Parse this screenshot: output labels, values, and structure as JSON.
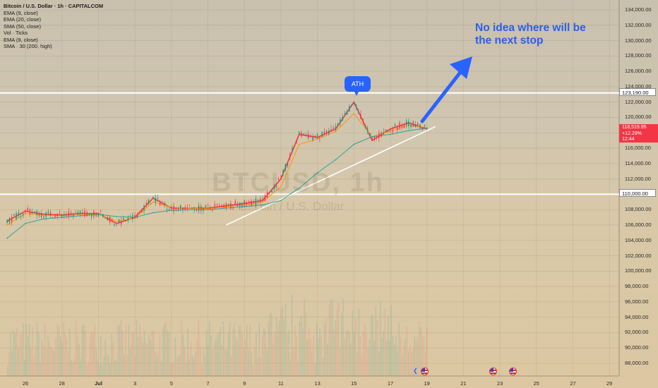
{
  "legend": {
    "title": "Bitcoin / U.S. Dollar · 1h · CAPITALCOM",
    "items": [
      "EMA (9, close)",
      "EMA (20, close)",
      "SMA (50, close)",
      "Vol · Ticks",
      "EMA (9, close)",
      "SMA · 30 (200, high)"
    ]
  },
  "watermark": {
    "symbol": "BTCUSD, 1h",
    "name": "Bitcoin / U.S. Dollar"
  },
  "annotation": {
    "text_line1": "No idea where will be",
    "text_line2": "the next stop",
    "ath_label": "ATH"
  },
  "current_price": {
    "price": "118,519.95",
    "change": "+12.29%",
    "countdown": "12:44"
  },
  "level_labels": {
    "upper": "123,190.00",
    "lower": "110,000.00"
  },
  "colors": {
    "ema9": "#f23645",
    "ema20": "#ff9800",
    "sma50": "#26a69a",
    "arrow": "#2962ff",
    "up": "#089981",
    "down": "#f23645"
  },
  "icons": [
    "us-flag-icon",
    "us-flag-icon",
    "us-flag-icon",
    "event-arrow-icon"
  ],
  "chart_data": {
    "type": "line",
    "title": "Bitcoin / U.S. Dollar · 1h · CAPITALCOM",
    "x_type": "date",
    "x_tick_labels": [
      "26",
      "28",
      "Jul",
      "3",
      "5",
      "7",
      "9",
      "11",
      "13",
      "15",
      "17",
      "19",
      "21",
      "23",
      "25",
      "27",
      "29"
    ],
    "y_ticks": [
      "134,000.00",
      "132,000.00",
      "130,000.00",
      "128,000.00",
      "126,000.00",
      "124,000.00",
      "122,000.00",
      "120,000.00",
      "118,000.00",
      "116,000.00",
      "114,000.00",
      "112,000.00",
      "110,000.00",
      "108,000.00",
      "106,000.00",
      "104,000.00",
      "102,000.00",
      "100,000.00",
      "98,000.00",
      "96,000.00",
      "94,000.00",
      "92,000.00",
      "90,000.00",
      "88,000.00"
    ],
    "ylim": [
      87000,
      135000
    ],
    "price_ylim": [
      87000,
      135000
    ],
    "x": [
      "2025-06-25",
      "2025-06-26",
      "2025-06-27",
      "2025-06-28",
      "2025-06-29",
      "2025-06-30",
      "2025-07-01",
      "2025-07-02",
      "2025-07-03",
      "2025-07-04",
      "2025-07-05",
      "2025-07-06",
      "2025-07-07",
      "2025-07-08",
      "2025-07-09",
      "2025-07-10",
      "2025-07-11",
      "2025-07-12",
      "2025-07-13",
      "2025-07-14",
      "2025-07-15",
      "2025-07-16",
      "2025-07-17",
      "2025-07-18"
    ],
    "series": [
      {
        "name": "EMA (9, close)",
        "values": [
          106500,
          107800,
          107400,
          107300,
          107500,
          107500,
          106200,
          107000,
          109500,
          108200,
          108200,
          108200,
          108500,
          108800,
          109200,
          112000,
          117800,
          117400,
          118500,
          122000,
          117000,
          118500,
          119300,
          118500
        ]
      },
      {
        "name": "EMA (20, close)",
        "values": [
          106000,
          107500,
          107300,
          107200,
          107400,
          107400,
          106500,
          106900,
          109000,
          108300,
          108200,
          108100,
          108400,
          108600,
          109000,
          111000,
          116500,
          117200,
          118200,
          120500,
          117500,
          118200,
          119000,
          118700
        ]
      },
      {
        "name": "SMA (50, close)",
        "values": [
          104300,
          106200,
          106800,
          107000,
          107200,
          107400,
          107100,
          107000,
          107600,
          107900,
          108000,
          108000,
          108200,
          108400,
          108600,
          109200,
          110800,
          112800,
          114500,
          116500,
          117500,
          117800,
          118300,
          118600
        ]
      }
    ],
    "horizontal_levels": [
      123190,
      110000
    ],
    "trendline": {
      "x": [
        "2025-07-07",
        "2025-07-18"
      ],
      "y": [
        106000,
        118800
      ]
    },
    "annotations": [
      "ATH",
      "No idea where will be the next stop"
    ]
  }
}
